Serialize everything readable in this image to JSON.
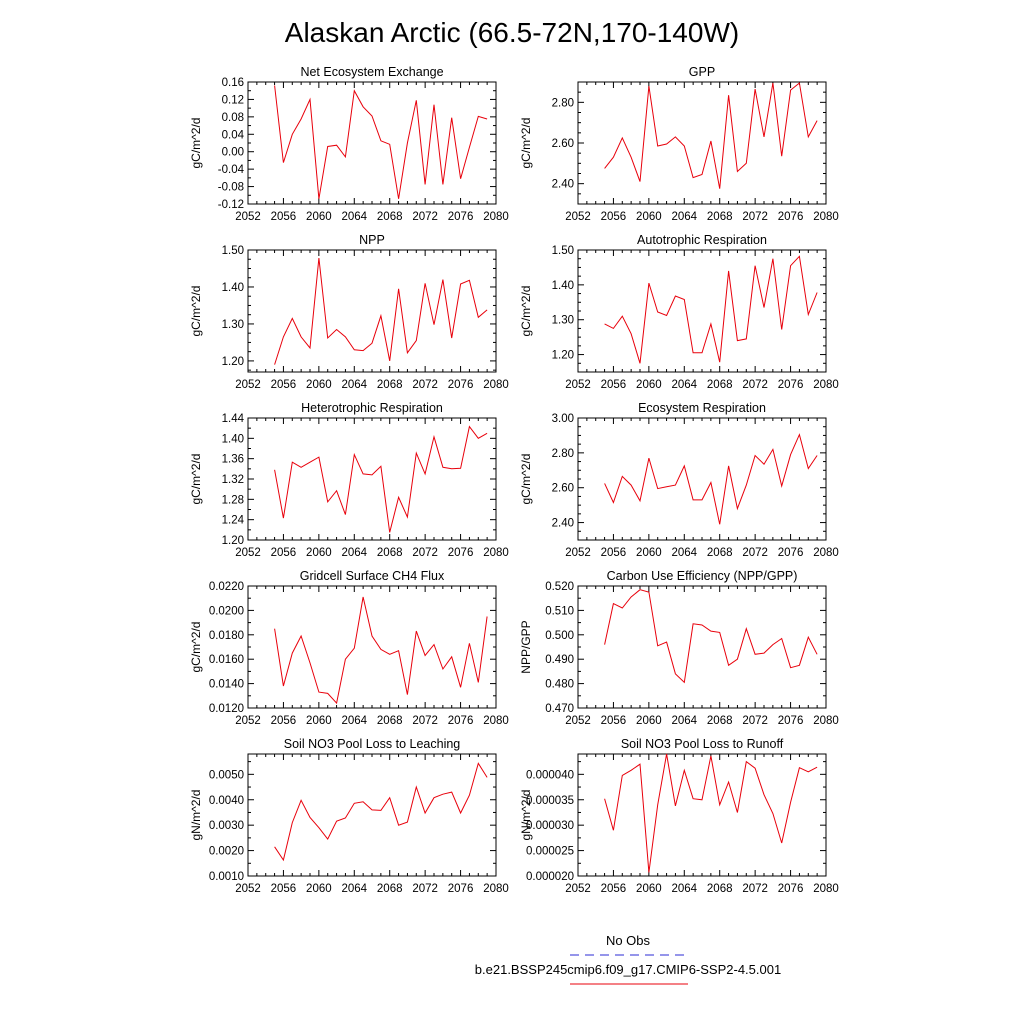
{
  "figure_title": "Alaskan Arctic (66.5-72N,170-140W)",
  "legend": {
    "items": [
      {
        "label": "No Obs",
        "color": "#2b2bd6",
        "dash": true
      },
      {
        "label": "b.e21.BSSP245cmip6.f09_g17.CMIP6-SSP2-4.5.001",
        "color": "#e8000b",
        "dash": false
      }
    ]
  },
  "chart_data": [
    {
      "type": "line",
      "title": "Net Ecosystem Exchange",
      "ylabel": "gC/m^2/d",
      "xlim": [
        2052,
        2080
      ],
      "x_ticks": [
        2052,
        2056,
        2060,
        2064,
        2068,
        2072,
        2076,
        2080
      ],
      "ylim": [
        -0.12,
        0.16
      ],
      "y_ticks": [
        "-0.12",
        "-0.08",
        "-0.04",
        "0.00",
        "0.04",
        "0.08",
        "0.12",
        "0.16"
      ],
      "y_minor": 2,
      "x": [
        2055,
        2056,
        2057,
        2058,
        2059,
        2060,
        2061,
        2062,
        2063,
        2064,
        2065,
        2066,
        2067,
        2068,
        2069,
        2070,
        2071,
        2072,
        2073,
        2074,
        2075,
        2076,
        2077,
        2078,
        2079
      ],
      "values": [
        0.152,
        -0.025,
        0.04,
        0.075,
        0.12,
        -0.108,
        0.012,
        0.015,
        -0.012,
        0.14,
        0.103,
        0.082,
        0.025,
        0.017,
        -0.108,
        0.02,
        0.118,
        -0.075,
        0.108,
        -0.075,
        0.078,
        -0.062,
        0.01,
        0.081,
        0.075
      ],
      "color": "#e8000b"
    },
    {
      "type": "line",
      "title": "GPP",
      "ylabel": "gC/m^2/d",
      "xlim": [
        2052,
        2080
      ],
      "x_ticks": [
        2052,
        2056,
        2060,
        2064,
        2068,
        2072,
        2076,
        2080
      ],
      "ylim": [
        2.3,
        2.9
      ],
      "y_ticks": [
        "2.40",
        "2.60",
        "2.80"
      ],
      "y_tick_values": [
        2.4,
        2.6,
        2.8
      ],
      "y_minor": 4,
      "x": [
        2055,
        2056,
        2057,
        2058,
        2059,
        2060,
        2061,
        2062,
        2063,
        2064,
        2065,
        2066,
        2067,
        2068,
        2069,
        2070,
        2071,
        2072,
        2073,
        2074,
        2075,
        2076,
        2077,
        2078,
        2079
      ],
      "values": [
        2.475,
        2.53,
        2.625,
        2.53,
        2.41,
        2.88,
        2.585,
        2.595,
        2.63,
        2.585,
        2.43,
        2.445,
        2.61,
        2.375,
        2.835,
        2.46,
        2.5,
        2.865,
        2.63,
        2.895,
        2.535,
        2.86,
        2.895,
        2.63,
        2.71
      ],
      "color": "#e8000b"
    },
    {
      "type": "line",
      "title": "NPP",
      "ylabel": "gC/m^2/d",
      "xlim": [
        2052,
        2080
      ],
      "x_ticks": [
        2052,
        2056,
        2060,
        2064,
        2068,
        2072,
        2076,
        2080
      ],
      "ylim": [
        1.17,
        1.5
      ],
      "y_ticks": [
        "1.20",
        "1.30",
        "1.40",
        "1.50"
      ],
      "y_tick_values": [
        1.2,
        1.3,
        1.4,
        1.5
      ],
      "y_minor": 4,
      "x": [
        2055,
        2056,
        2057,
        2058,
        2059,
        2060,
        2061,
        2062,
        2063,
        2064,
        2065,
        2066,
        2067,
        2068,
        2069,
        2070,
        2071,
        2072,
        2073,
        2074,
        2075,
        2076,
        2077,
        2078,
        2079
      ],
      "values": [
        1.19,
        1.265,
        1.315,
        1.265,
        1.235,
        1.478,
        1.262,
        1.285,
        1.265,
        1.23,
        1.228,
        1.248,
        1.322,
        1.2,
        1.395,
        1.222,
        1.255,
        1.41,
        1.298,
        1.42,
        1.262,
        1.408,
        1.418,
        1.318,
        1.338
      ],
      "color": "#e8000b"
    },
    {
      "type": "line",
      "title": "Autotrophic Respiration",
      "ylabel": "gC/m^2/d",
      "xlim": [
        2052,
        2080
      ],
      "x_ticks": [
        2052,
        2056,
        2060,
        2064,
        2068,
        2072,
        2076,
        2080
      ],
      "ylim": [
        1.15,
        1.5
      ],
      "y_ticks": [
        "1.20",
        "1.30",
        "1.40",
        "1.50"
      ],
      "y_tick_values": [
        1.2,
        1.3,
        1.4,
        1.5
      ],
      "y_minor": 4,
      "x": [
        2055,
        2056,
        2057,
        2058,
        2059,
        2060,
        2061,
        2062,
        2063,
        2064,
        2065,
        2066,
        2067,
        2068,
        2069,
        2070,
        2071,
        2072,
        2073,
        2074,
        2075,
        2076,
        2077,
        2078,
        2079
      ],
      "values": [
        1.288,
        1.275,
        1.31,
        1.26,
        1.175,
        1.405,
        1.322,
        1.312,
        1.368,
        1.358,
        1.205,
        1.205,
        1.288,
        1.178,
        1.44,
        1.24,
        1.245,
        1.455,
        1.335,
        1.475,
        1.272,
        1.455,
        1.482,
        1.315,
        1.378
      ],
      "color": "#e8000b"
    },
    {
      "type": "line",
      "title": "Heterotrophic Respiration",
      "ylabel": "gC/m^2/d",
      "xlim": [
        2052,
        2080
      ],
      "x_ticks": [
        2052,
        2056,
        2060,
        2064,
        2068,
        2072,
        2076,
        2080
      ],
      "ylim": [
        1.2,
        1.44
      ],
      "y_ticks": [
        "1.20",
        "1.24",
        "1.28",
        "1.32",
        "1.36",
        "1.40",
        "1.44"
      ],
      "y_minor": 2,
      "x": [
        2055,
        2056,
        2057,
        2058,
        2059,
        2060,
        2061,
        2062,
        2063,
        2064,
        2065,
        2066,
        2067,
        2068,
        2069,
        2070,
        2071,
        2072,
        2073,
        2074,
        2075,
        2076,
        2077,
        2078,
        2079
      ],
      "values": [
        1.338,
        1.243,
        1.353,
        1.343,
        1.353,
        1.363,
        1.275,
        1.297,
        1.25,
        1.368,
        1.33,
        1.328,
        1.345,
        1.215,
        1.284,
        1.245,
        1.371,
        1.33,
        1.403,
        1.343,
        1.34,
        1.341,
        1.423,
        1.4,
        1.41
      ],
      "color": "#e8000b"
    },
    {
      "type": "line",
      "title": "Ecosystem Respiration",
      "ylabel": "gC/m^2/d",
      "xlim": [
        2052,
        2080
      ],
      "x_ticks": [
        2052,
        2056,
        2060,
        2064,
        2068,
        2072,
        2076,
        2080
      ],
      "ylim": [
        2.3,
        3.0
      ],
      "y_ticks": [
        "2.40",
        "2.60",
        "2.80",
        "3.00"
      ],
      "y_tick_values": [
        2.4,
        2.6,
        2.8,
        3.0
      ],
      "y_minor": 4,
      "x": [
        2055,
        2056,
        2057,
        2058,
        2059,
        2060,
        2061,
        2062,
        2063,
        2064,
        2065,
        2066,
        2067,
        2068,
        2069,
        2070,
        2071,
        2072,
        2073,
        2074,
        2075,
        2076,
        2077,
        2078,
        2079
      ],
      "values": [
        2.625,
        2.515,
        2.665,
        2.615,
        2.525,
        2.77,
        2.595,
        2.605,
        2.615,
        2.725,
        2.53,
        2.53,
        2.63,
        2.39,
        2.725,
        2.48,
        2.615,
        2.785,
        2.735,
        2.82,
        2.61,
        2.79,
        2.905,
        2.71,
        2.785
      ],
      "color": "#e8000b"
    },
    {
      "type": "line",
      "title": "Gridcell Surface CH4 Flux",
      "ylabel": "gC/m^2/d",
      "xlim": [
        2052,
        2080
      ],
      "x_ticks": [
        2052,
        2056,
        2060,
        2064,
        2068,
        2072,
        2076,
        2080
      ],
      "ylim": [
        0.012,
        0.022
      ],
      "y_ticks": [
        "0.0120",
        "0.0140",
        "0.0160",
        "0.0180",
        "0.0200",
        "0.0220"
      ],
      "y_minor": 2,
      "x": [
        2055,
        2056,
        2057,
        2058,
        2059,
        2060,
        2061,
        2062,
        2063,
        2064,
        2065,
        2066,
        2067,
        2068,
        2069,
        2070,
        2071,
        2072,
        2073,
        2074,
        2075,
        2076,
        2077,
        2078,
        2079
      ],
      "values": [
        0.0185,
        0.0138,
        0.0165,
        0.0179,
        0.0157,
        0.0133,
        0.0132,
        0.0124,
        0.016,
        0.0169,
        0.0211,
        0.0179,
        0.0168,
        0.0164,
        0.0167,
        0.0131,
        0.0183,
        0.0163,
        0.0172,
        0.0152,
        0.0162,
        0.0137,
        0.0173,
        0.0141,
        0.0195
      ],
      "color": "#e8000b"
    },
    {
      "type": "line",
      "title": "Carbon Use Efficiency (NPP/GPP)",
      "ylabel": "NPP/GPP",
      "xlim": [
        2052,
        2080
      ],
      "x_ticks": [
        2052,
        2056,
        2060,
        2064,
        2068,
        2072,
        2076,
        2080
      ],
      "ylim": [
        0.47,
        0.52
      ],
      "y_ticks": [
        "0.470",
        "0.480",
        "0.490",
        "0.500",
        "0.510",
        "0.520"
      ],
      "y_minor": 2,
      "x": [
        2055,
        2056,
        2057,
        2058,
        2059,
        2060,
        2061,
        2062,
        2063,
        2064,
        2065,
        2066,
        2067,
        2068,
        2069,
        2070,
        2071,
        2072,
        2073,
        2074,
        2075,
        2076,
        2077,
        2078,
        2079
      ],
      "values": [
        0.496,
        0.5128,
        0.511,
        0.5155,
        0.5185,
        0.5175,
        0.4955,
        0.497,
        0.484,
        0.4805,
        0.5045,
        0.504,
        0.5015,
        0.501,
        0.4875,
        0.49,
        0.5025,
        0.492,
        0.4925,
        0.496,
        0.4985,
        0.4865,
        0.4875,
        0.499,
        0.492
      ],
      "color": "#e8000b"
    },
    {
      "type": "line",
      "title": "Soil NO3 Pool Loss to Leaching",
      "ylabel": "gN/m^2/d",
      "xlim": [
        2052,
        2080
      ],
      "x_ticks": [
        2052,
        2056,
        2060,
        2064,
        2068,
        2072,
        2076,
        2080
      ],
      "ylim": [
        0.001,
        0.0058
      ],
      "y_ticks": [
        "0.0010",
        "0.0020",
        "0.0030",
        "0.0040",
        "0.0050"
      ],
      "y_tick_values": [
        0.001,
        0.002,
        0.003,
        0.004,
        0.005
      ],
      "y_minor": 2,
      "x": [
        2055,
        2056,
        2057,
        2058,
        2059,
        2060,
        2061,
        2062,
        2063,
        2064,
        2065,
        2066,
        2067,
        2068,
        2069,
        2070,
        2071,
        2072,
        2073,
        2074,
        2075,
        2076,
        2077,
        2078,
        2079
      ],
      "values": [
        0.00215,
        0.00163,
        0.0031,
        0.00398,
        0.0033,
        0.0029,
        0.00245,
        0.00316,
        0.00328,
        0.00386,
        0.00392,
        0.0036,
        0.00358,
        0.00408,
        0.003,
        0.00312,
        0.0045,
        0.00348,
        0.00408,
        0.00422,
        0.0043,
        0.00348,
        0.00418,
        0.00543,
        0.00488
      ],
      "color": "#e8000b"
    },
    {
      "type": "line",
      "title": "Soil NO3 Pool Loss to Runoff",
      "ylabel": "gN/m^2/d",
      "xlim": [
        2052,
        2080
      ],
      "x_ticks": [
        2052,
        2056,
        2060,
        2064,
        2068,
        2072,
        2076,
        2080
      ],
      "ylim": [
        2e-05,
        4.4e-05
      ],
      "y_ticks": [
        "0.000020",
        "0.000025",
        "0.000030",
        "0.000035",
        "0.000040"
      ],
      "y_tick_values": [
        2e-05,
        2.5e-05,
        3e-05,
        3.5e-05,
        4e-05
      ],
      "y_minor": 2,
      "x": [
        2055,
        2056,
        2057,
        2058,
        2059,
        2060,
        2061,
        2062,
        2063,
        2064,
        2065,
        2066,
        2067,
        2068,
        2069,
        2070,
        2071,
        2072,
        2073,
        2074,
        2075,
        2076,
        2077,
        2078,
        2079
      ],
      "values": [
        3.52e-05,
        2.9e-05,
        3.98e-05,
        4.08e-05,
        4.2e-05,
        2.07e-05,
        3.4e-05,
        4.4e-05,
        3.38e-05,
        4.08e-05,
        3.52e-05,
        3.5e-05,
        4.36e-05,
        3.4e-05,
        3.85e-05,
        3.25e-05,
        4.25e-05,
        4.12e-05,
        3.6e-05,
        3.23e-05,
        2.65e-05,
        3.45e-05,
        4.13e-05,
        4.05e-05,
        4.14e-05
      ],
      "color": "#e8000b"
    }
  ]
}
